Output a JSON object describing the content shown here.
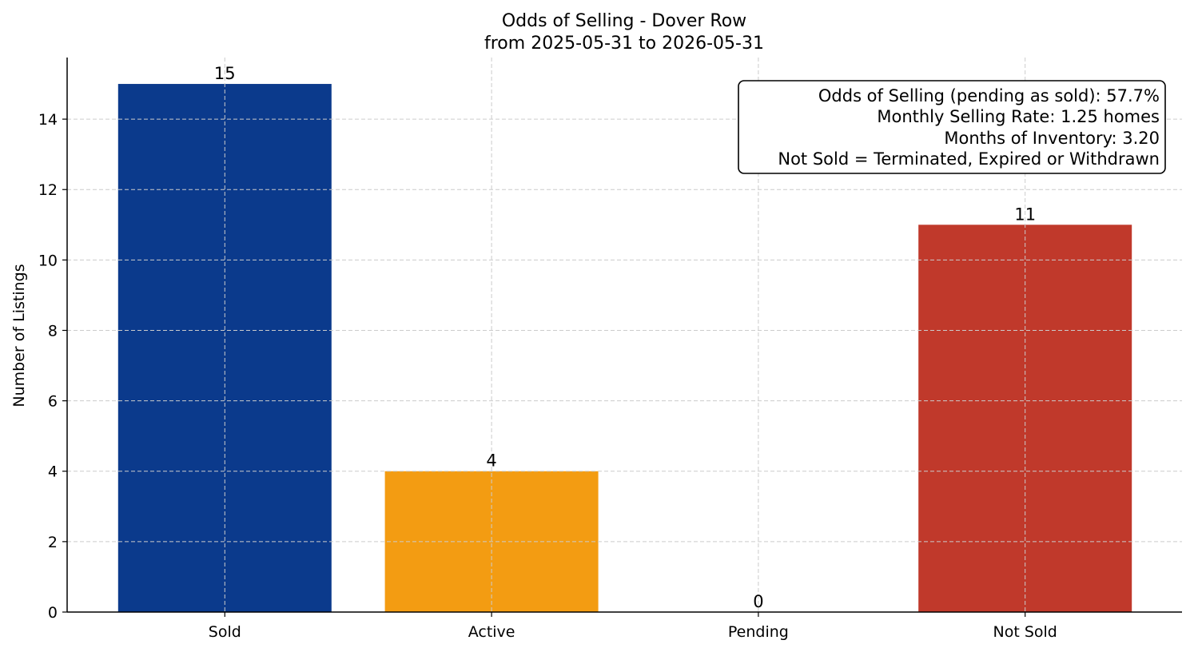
{
  "chart_data": {
    "type": "bar",
    "title": "Odds of Selling - Dover Row",
    "subtitle": "from 2025-05-31 to 2026-05-31",
    "xlabel": "",
    "ylabel": "Number of Listings",
    "categories": [
      "Sold",
      "Active",
      "Pending",
      "Not Sold"
    ],
    "values": [
      15,
      4,
      0,
      11
    ],
    "data_labels": [
      "15",
      "4",
      "0",
      "11"
    ],
    "colors": [
      "#0b3a8c",
      "#f39c12",
      "#f39c12",
      "#c0392b"
    ],
    "ylim": [
      0,
      15.75
    ],
    "yticks": [
      0,
      2,
      4,
      6,
      8,
      10,
      12,
      14
    ],
    "grid": true,
    "annotation": {
      "placement": "top-right",
      "lines": [
        "Odds of Selling (pending as sold): 57.7%",
        "Monthly Selling Rate: 1.25 homes",
        "Months of Inventory: 3.20",
        "Not Sold = Terminated, Expired or Withdrawn"
      ]
    }
  }
}
